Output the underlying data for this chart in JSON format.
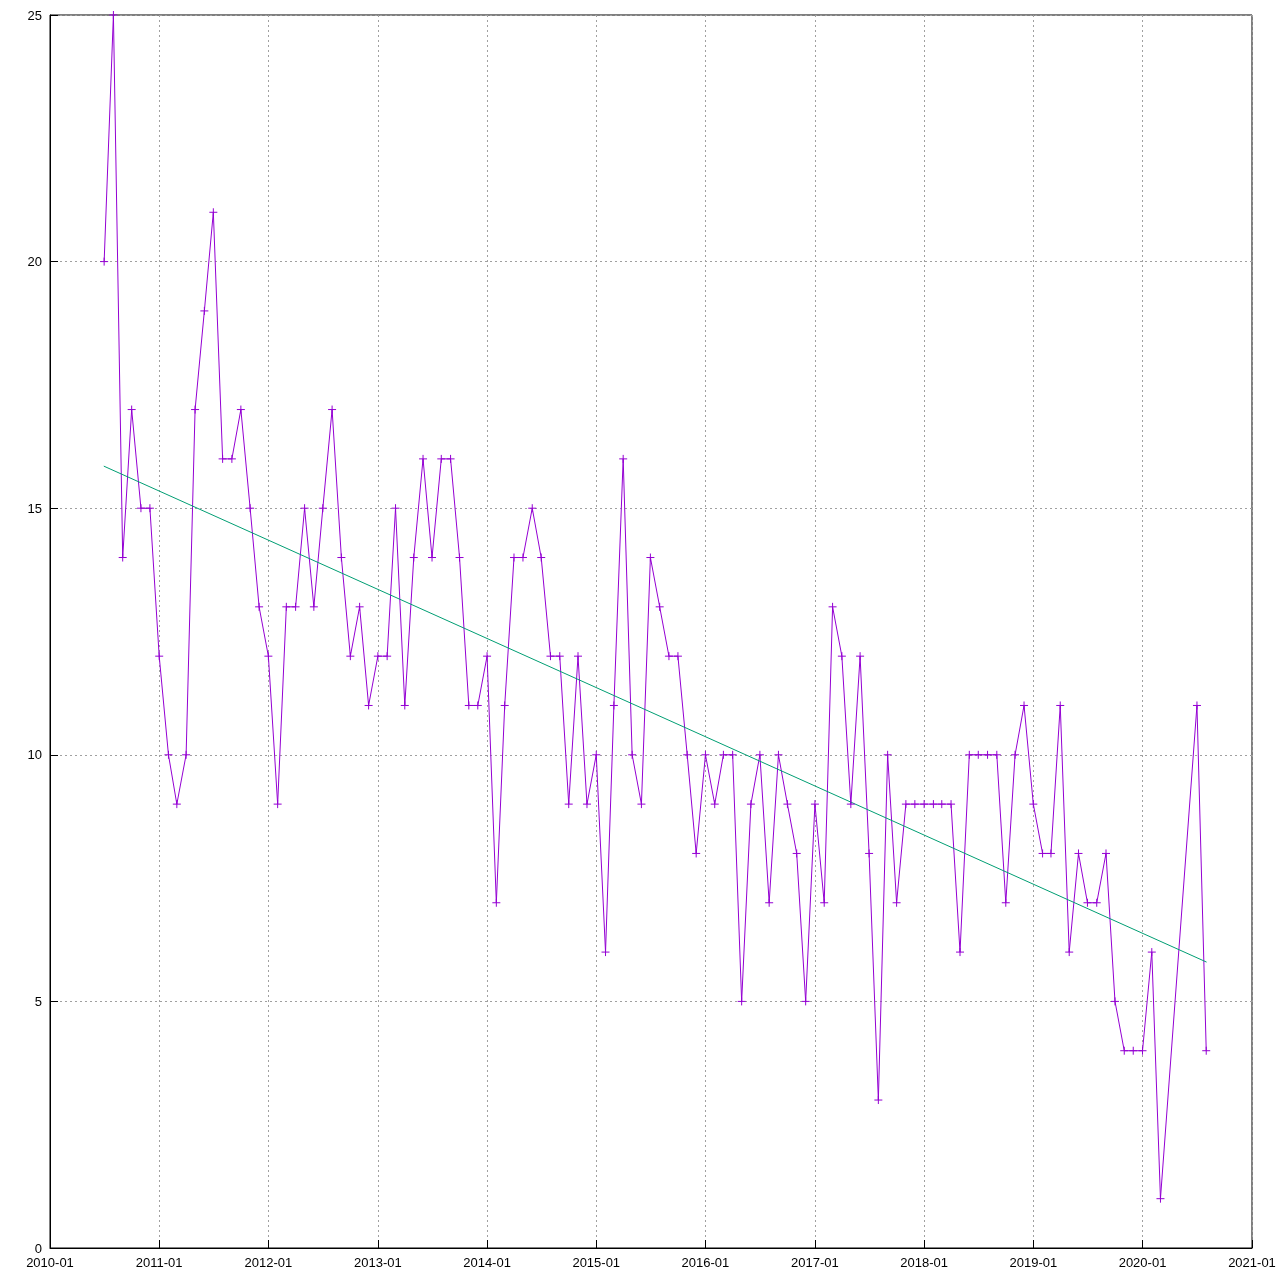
{
  "chart_data": {
    "type": "line",
    "xlim": [
      "2010-01",
      "2021-01"
    ],
    "xticks": [
      "2010-01",
      "2011-01",
      "2012-01",
      "2013-01",
      "2014-01",
      "2015-01",
      "2016-01",
      "2017-01",
      "2018-01",
      "2019-01",
      "2020-01",
      "2021-01"
    ],
    "ylim": [
      0,
      25
    ],
    "yticks": [
      0,
      5,
      10,
      15,
      20,
      25
    ],
    "grid": true,
    "series": [
      {
        "color": "#9400d3",
        "marker": "cross",
        "line_style": "solid",
        "x": [
          "2010-07",
          "2010-08",
          "2010-09",
          "2010-10",
          "2010-11",
          "2010-12",
          "2011-01",
          "2011-02",
          "2011-03",
          "2011-04",
          "2011-05",
          "2011-06",
          "2011-07",
          "2011-08",
          "2011-09",
          "2011-10",
          "2011-11",
          "2011-12",
          "2012-01",
          "2012-02",
          "2012-03",
          "2012-04",
          "2012-05",
          "2012-06",
          "2012-07",
          "2012-08",
          "2012-09",
          "2012-10",
          "2012-11",
          "2012-12",
          "2013-01",
          "2013-02",
          "2013-03",
          "2013-04",
          "2013-05",
          "2013-06",
          "2013-07",
          "2013-08",
          "2013-09",
          "2013-10",
          "2013-11",
          "2013-12",
          "2014-01",
          "2014-02",
          "2014-03",
          "2014-04",
          "2014-05",
          "2014-06",
          "2014-07",
          "2014-08",
          "2014-09",
          "2014-10",
          "2014-11",
          "2014-12",
          "2015-01",
          "2015-02",
          "2015-03",
          "2015-04",
          "2015-05",
          "2015-06",
          "2015-07",
          "2015-08",
          "2015-09",
          "2015-10",
          "2015-11",
          "2015-12",
          "2016-01",
          "2016-02",
          "2016-03",
          "2016-04",
          "2016-05",
          "2016-06",
          "2016-07",
          "2016-08",
          "2016-09",
          "2016-10",
          "2016-11",
          "2016-12",
          "2017-01",
          "2017-02",
          "2017-03",
          "2017-04",
          "2017-05",
          "2017-06",
          "2017-07",
          "2017-08",
          "2017-09",
          "2017-10",
          "2017-11",
          "2017-12",
          "2018-01",
          "2018-02",
          "2018-03",
          "2018-04",
          "2018-05",
          "2018-06",
          "2018-07",
          "2018-08",
          "2018-09",
          "2018-10",
          "2018-11",
          "2018-12",
          "2019-01",
          "2019-02",
          "2019-03",
          "2019-04",
          "2019-05",
          "2019-06",
          "2019-07",
          "2019-08",
          "2019-09",
          "2019-10",
          "2019-11",
          "2019-12",
          "2020-01",
          "2020-02",
          "2020-03",
          "2020-07",
          "2020-08"
        ],
        "values": [
          20,
          25,
          14,
          17,
          15,
          15,
          12,
          10,
          9,
          10,
          17,
          19,
          21,
          16,
          16,
          17,
          15,
          13,
          12,
          9,
          13,
          13,
          15,
          13,
          15,
          17,
          14,
          12,
          13,
          11,
          12,
          12,
          15,
          11,
          14,
          16,
          14,
          16,
          16,
          14,
          11,
          11,
          12,
          7,
          11,
          14,
          14,
          15,
          14,
          12,
          12,
          9,
          12,
          9,
          10,
          6,
          11,
          16,
          10,
          9,
          14,
          13,
          12,
          12,
          10,
          8,
          10,
          9,
          10,
          10,
          5,
          9,
          10,
          7,
          10,
          9,
          8,
          5,
          9,
          7,
          13,
          12,
          9,
          12,
          8,
          3,
          10,
          7,
          9,
          9,
          9,
          9,
          9,
          9,
          6,
          10,
          10,
          10,
          10,
          7,
          10,
          11,
          9,
          8,
          8,
          11,
          6,
          8,
          7,
          7,
          8,
          5,
          4,
          4,
          4,
          6,
          1,
          11,
          4
        ]
      },
      {
        "type": "line",
        "color": "#009e73",
        "marker": "none",
        "line_style": "solid",
        "x": [
          "2010-07",
          "2020-08"
        ],
        "values": [
          15.85,
          5.8
        ]
      }
    ]
  }
}
